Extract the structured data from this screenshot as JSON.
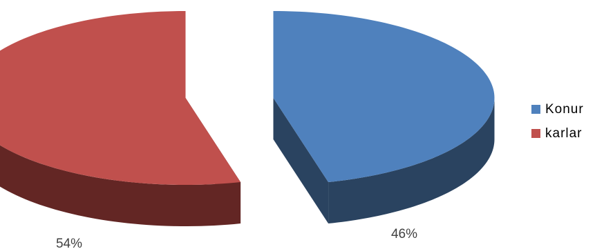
{
  "chart_data": {
    "type": "pie",
    "title": "",
    "three_d": true,
    "exploded": true,
    "categories": [
      "Konur",
      "karlar"
    ],
    "values": [
      46,
      54
    ],
    "value_labels": [
      "46%",
      "54%"
    ],
    "colors": [
      "#4F81BD",
      "#C0504D"
    ],
    "side_colors": [
      "#2A4360",
      "#632624"
    ],
    "legend": {
      "position": "right",
      "items": [
        {
          "label": "Konur",
          "color": "#4F81BD"
        },
        {
          "label": "karlar",
          "color": "#C0504D"
        }
      ]
    }
  }
}
